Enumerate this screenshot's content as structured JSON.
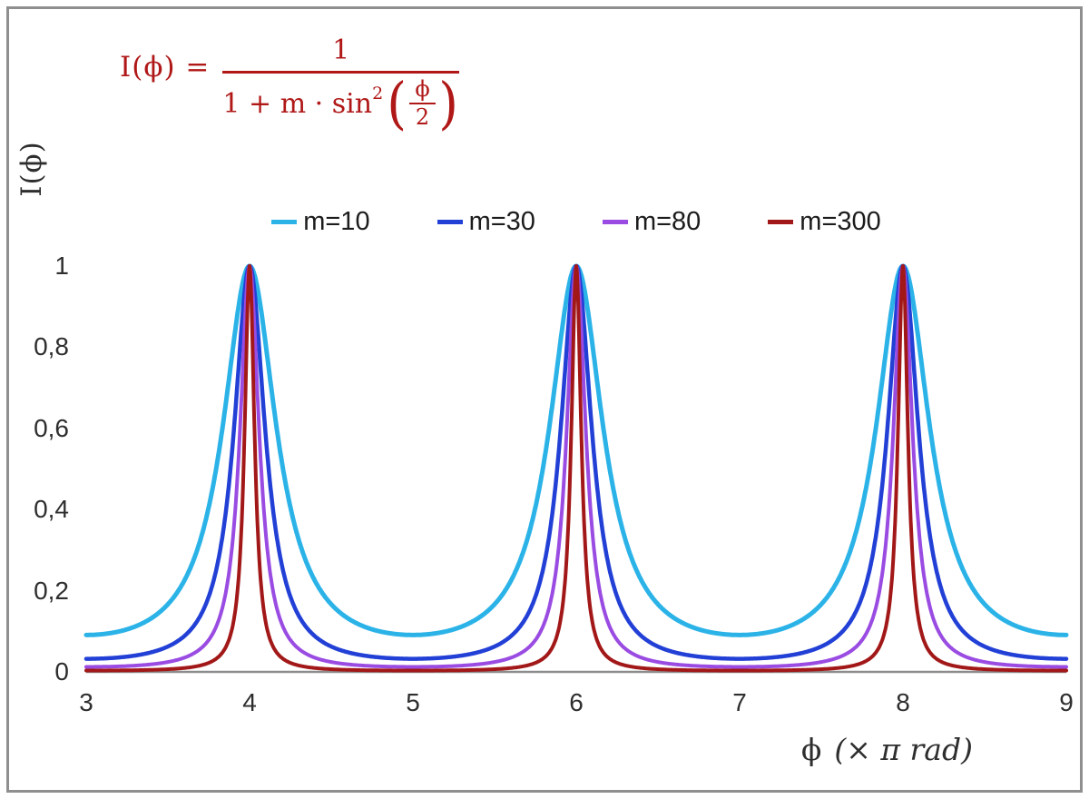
{
  "chart_data": {
    "type": "line",
    "function": "I(phi) = 1 / (1 + m * sin^2(phi/2)), phi in units of pi rad",
    "grid": false,
    "legend_position": "top-center",
    "peaks_at_x": [
      4,
      6,
      8
    ],
    "peak_value": 1,
    "x": {
      "min": 3,
      "max": 9,
      "title_phi": "ϕ",
      "title_rest": "(× π rad)",
      "ticks": [
        {
          "v": 3,
          "label": "3"
        },
        {
          "v": 4,
          "label": "4"
        },
        {
          "v": 5,
          "label": "5"
        },
        {
          "v": 6,
          "label": "6"
        },
        {
          "v": 7,
          "label": "7"
        },
        {
          "v": 8,
          "label": "8"
        },
        {
          "v": 9,
          "label": "9"
        }
      ]
    },
    "y": {
      "min": 0,
      "max": 1,
      "title": "I(ϕ)",
      "ticks": [
        {
          "v": 1,
          "label": "1"
        },
        {
          "v": 0.8,
          "label": "0,8"
        },
        {
          "v": 0.6,
          "label": "0,6"
        },
        {
          "v": 0.4,
          "label": "0,4"
        },
        {
          "v": 0.2,
          "label": "0,2"
        },
        {
          "v": 0,
          "label": "0"
        }
      ]
    },
    "series": [
      {
        "name": "m=10",
        "m": 10,
        "color": "#2bb3e8",
        "width": 5
      },
      {
        "name": "m=30",
        "m": 30,
        "color": "#2240d6",
        "width": 4.5
      },
      {
        "name": "m=80",
        "m": 80,
        "color": "#9a4ce2",
        "width": 4
      },
      {
        "name": "m=300",
        "m": 300,
        "color": "#a21818",
        "width": 4
      }
    ],
    "annotation": {
      "lhs": "I(ϕ) =",
      "numerator": "1",
      "denom_prefix": "1 + m · sin",
      "denom_sup": "2",
      "paren_open": "(",
      "paren_close": ")",
      "inner_num": "ϕ",
      "inner_den": "2",
      "color": "#b01818"
    },
    "axis_color": "#8c8c8c",
    "frame_color": "#8f8f8f"
  }
}
